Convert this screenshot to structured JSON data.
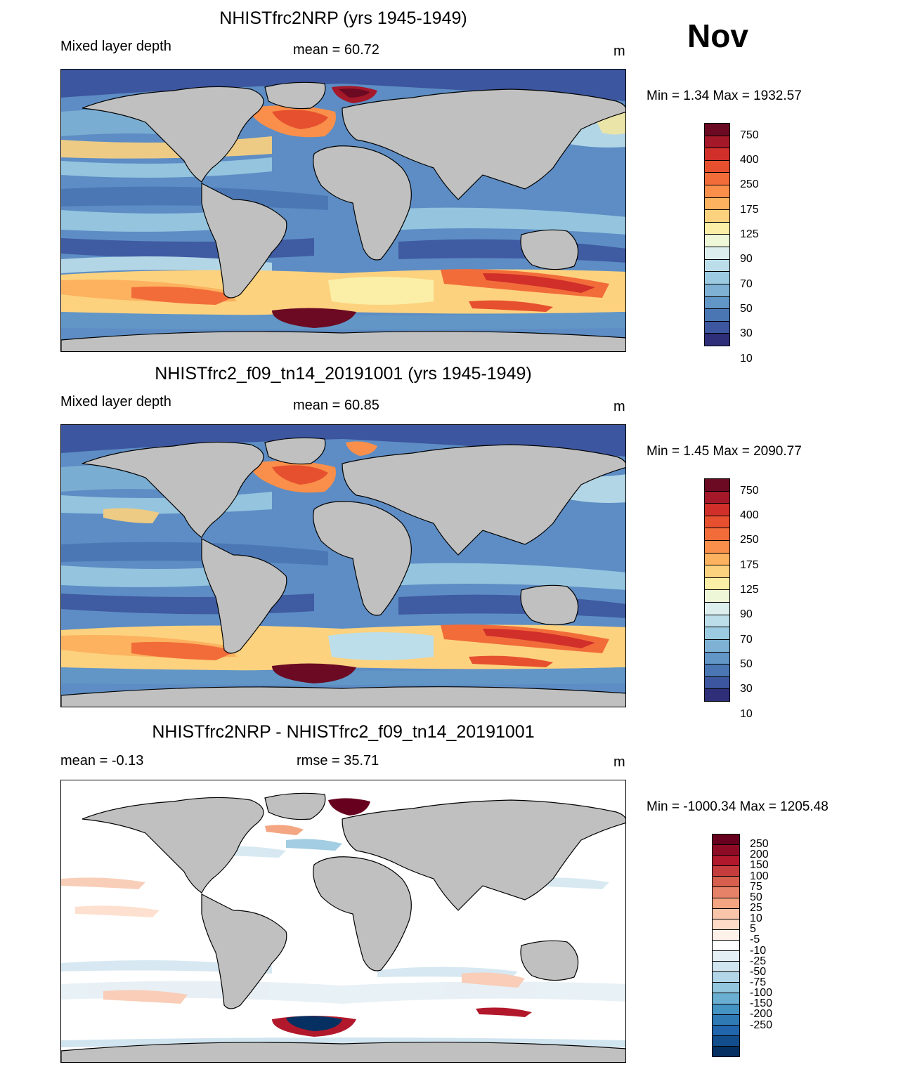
{
  "month": "Nov",
  "panels": [
    {
      "title": "NHISTfrc2NRP (yrs 1945-1949)",
      "left_label": "Mixed layer depth",
      "center_label": "mean =  60.72",
      "units": "m",
      "minmax": "Min =   1.34 Max = 1932.57",
      "kind": "field"
    },
    {
      "title": "NHISTfrc2_f09_tn14_20191001 (yrs 1945-1949)",
      "left_label": "Mixed layer depth",
      "center_label": "mean =  60.85",
      "units": "m",
      "minmax": "Min =   1.45 Max = 2090.77",
      "kind": "field"
    },
    {
      "title": "NHISTfrc2NRP - NHISTfrc2_f09_tn14_20191001",
      "left_label": "mean =  -0.13",
      "center_label": "rmse =  35.71",
      "units": "m",
      "minmax": "Min = -1000.34 Max = 1205.48",
      "kind": "diff"
    }
  ],
  "colorbars": {
    "field": {
      "colors": [
        "#6b0a22",
        "#a5182a",
        "#d12f2a",
        "#e6502f",
        "#f26c3a",
        "#f98f4a",
        "#fcb25f",
        "#fdd27f",
        "#fbeea6",
        "#eef7d8",
        "#dcefee",
        "#bcdeea",
        "#9bcae1",
        "#7eb1d4",
        "#6196c6",
        "#4a76b4",
        "#3c569f",
        "#2e2f78"
      ],
      "labels": [
        "750",
        "400",
        "250",
        "175",
        "125",
        "90",
        "70",
        "50",
        "30",
        "10"
      ]
    },
    "diff": {
      "colors": [
        "#67001f",
        "#8e0b25",
        "#b2182b",
        "#c43c3c",
        "#d6604d",
        "#e58267",
        "#f4a582",
        "#f8c5ab",
        "#fddbc7",
        "#fef1ea",
        "#ffffff",
        "#e4eef5",
        "#d1e5f0",
        "#b3d5e8",
        "#92c5de",
        "#6aaed1",
        "#4393c3",
        "#2f79b5",
        "#2166ac",
        "#124d8c",
        "#053061"
      ],
      "labels": [
        "250",
        "200",
        "150",
        "100",
        "75",
        "50",
        "25",
        "10",
        "5",
        "-5",
        "-10",
        "-25",
        "-50",
        "-75",
        "-100",
        "-150",
        "-200",
        "-250"
      ]
    }
  }
}
